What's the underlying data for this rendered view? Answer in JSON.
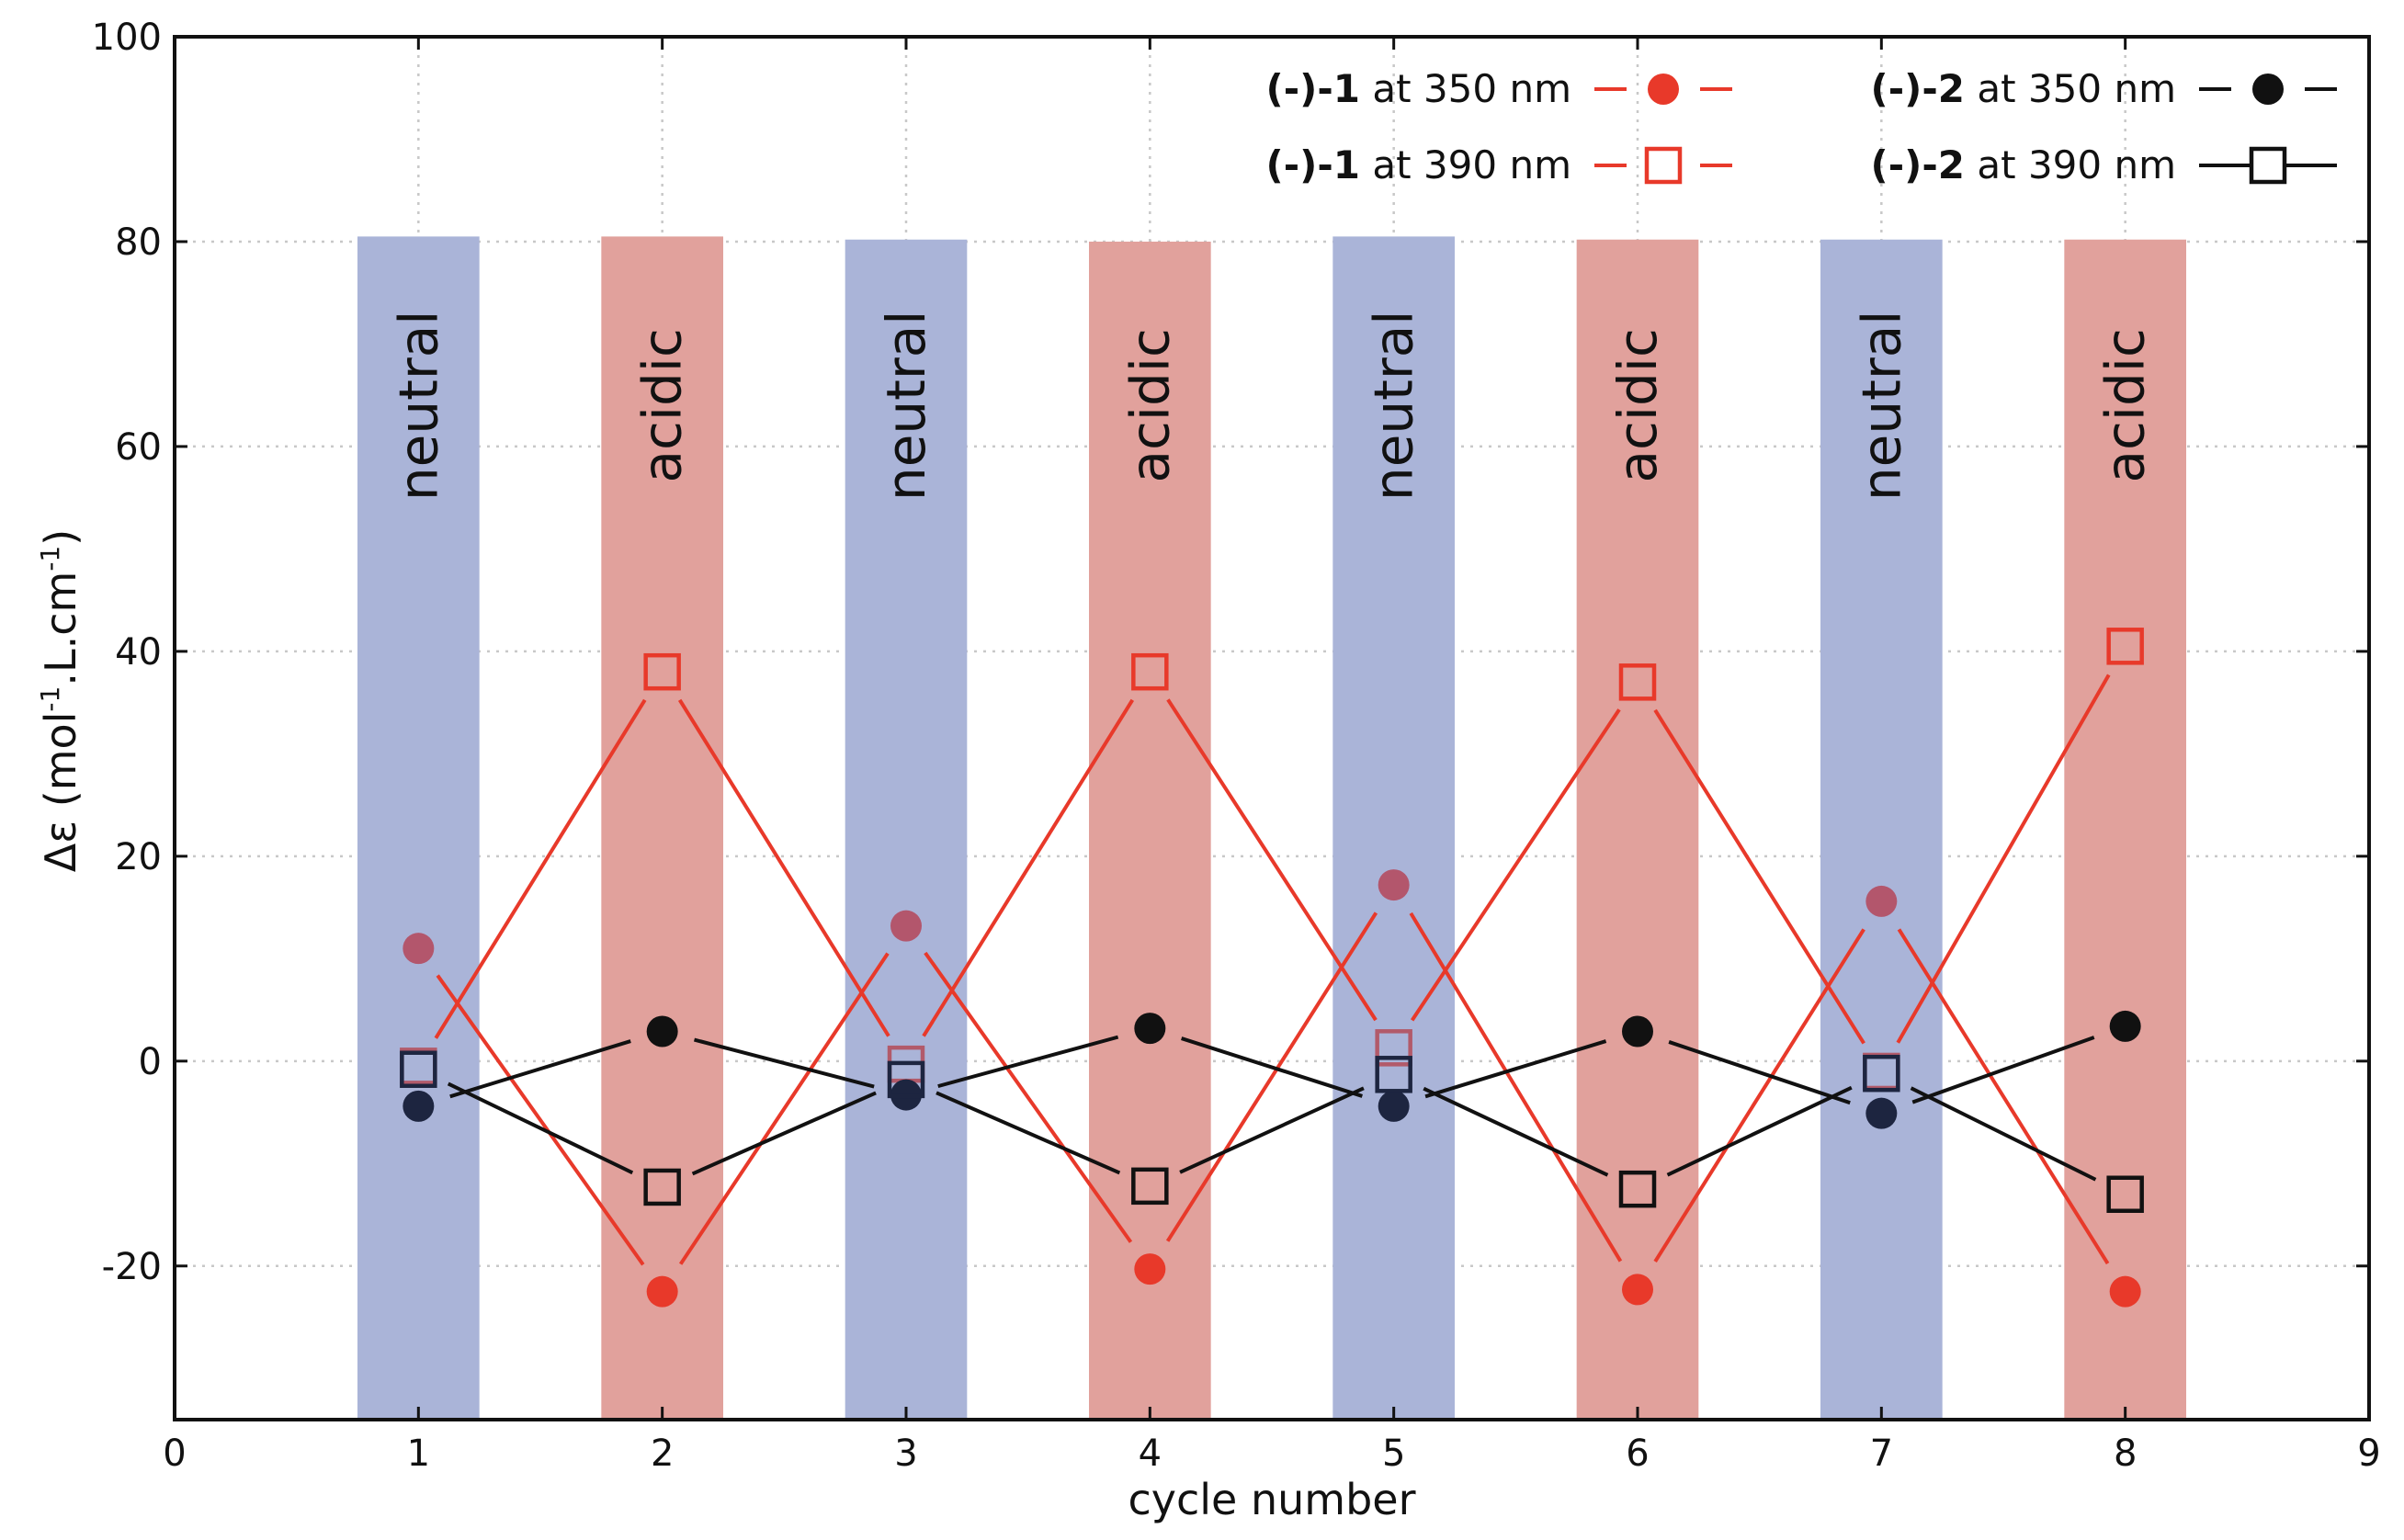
{
  "chart_data": {
    "type": "line",
    "title": "",
    "xlabel": "cycle number",
    "ylabel_main": "Δε (mol",
    "ylabel_exp1": "-1",
    "ylabel_mid": ".L.cm",
    "ylabel_exp2": "-1",
    "ylabel_close": ")",
    "xlim": [
      0,
      9
    ],
    "ylim": [
      -35,
      100
    ],
    "xticks": [
      "0",
      "1",
      "2",
      "3",
      "4",
      "5",
      "6",
      "7",
      "8",
      "9"
    ],
    "xtick_values": [
      0,
      1,
      2,
      3,
      4,
      5,
      6,
      7,
      8,
      9
    ],
    "yticks": [
      "100",
      "80",
      "60",
      "40",
      "20",
      "0",
      "-20"
    ],
    "ytick_values": [
      100,
      80,
      60,
      40,
      20,
      0,
      -20
    ],
    "grid": true,
    "legend_position": "top-right",
    "x": [
      1,
      2,
      3,
      4,
      5,
      6,
      7,
      8
    ],
    "bands": [
      {
        "label": "neutral",
        "x": 1,
        "color": "#aab4d8",
        "top": 80.5
      },
      {
        "label": "acidic",
        "x": 2,
        "color": "#e1a19c",
        "top": 80.5
      },
      {
        "label": "neutral",
        "x": 3,
        "color": "#aab4d8",
        "top": 80.2
      },
      {
        "label": "acidic",
        "x": 4,
        "color": "#e1a19c",
        "top": 80
      },
      {
        "label": "neutral",
        "x": 5,
        "color": "#aab4d8",
        "top": 80.5
      },
      {
        "label": "acidic",
        "x": 6,
        "color": "#e1a19c",
        "top": 80.2
      },
      {
        "label": "neutral",
        "x": 7,
        "color": "#aab4d8",
        "top": 80.2
      },
      {
        "label": "acidic",
        "x": 8,
        "color": "#e1a19c",
        "top": 80.2
      }
    ],
    "series": [
      {
        "compound": "(-)-1",
        "wavelength": " at 350 nm",
        "marker": "circle",
        "filled": true,
        "line": "dashed",
        "color": "#e8392a",
        "values": [
          11,
          -22.5,
          13.2,
          -20.3,
          17.2,
          -22.3,
          15.6,
          -22.5
        ]
      },
      {
        "compound": "(-)-1",
        "wavelength": " at 390 nm",
        "marker": "square",
        "filled": false,
        "line": "dashed",
        "color": "#e8392a",
        "values": [
          -0.5,
          38,
          -0.3,
          38,
          1.3,
          37,
          -1.0,
          40.5
        ]
      },
      {
        "compound": "(-)-2",
        "wavelength": " at 350 nm",
        "marker": "circle",
        "filled": true,
        "line": "dashed",
        "color": "#111111",
        "values": [
          -4.4,
          2.9,
          -3.3,
          3.2,
          -4.4,
          2.9,
          -5.1,
          3.4
        ]
      },
      {
        "compound": "(-)-2",
        "wavelength": " at 390 nm",
        "marker": "square",
        "filled": false,
        "line": "solid",
        "color": "#111111",
        "values": [
          -0.8,
          -12.3,
          -1.8,
          -12.2,
          -1.3,
          -12.5,
          -1.2,
          -13
        ]
      }
    ]
  }
}
